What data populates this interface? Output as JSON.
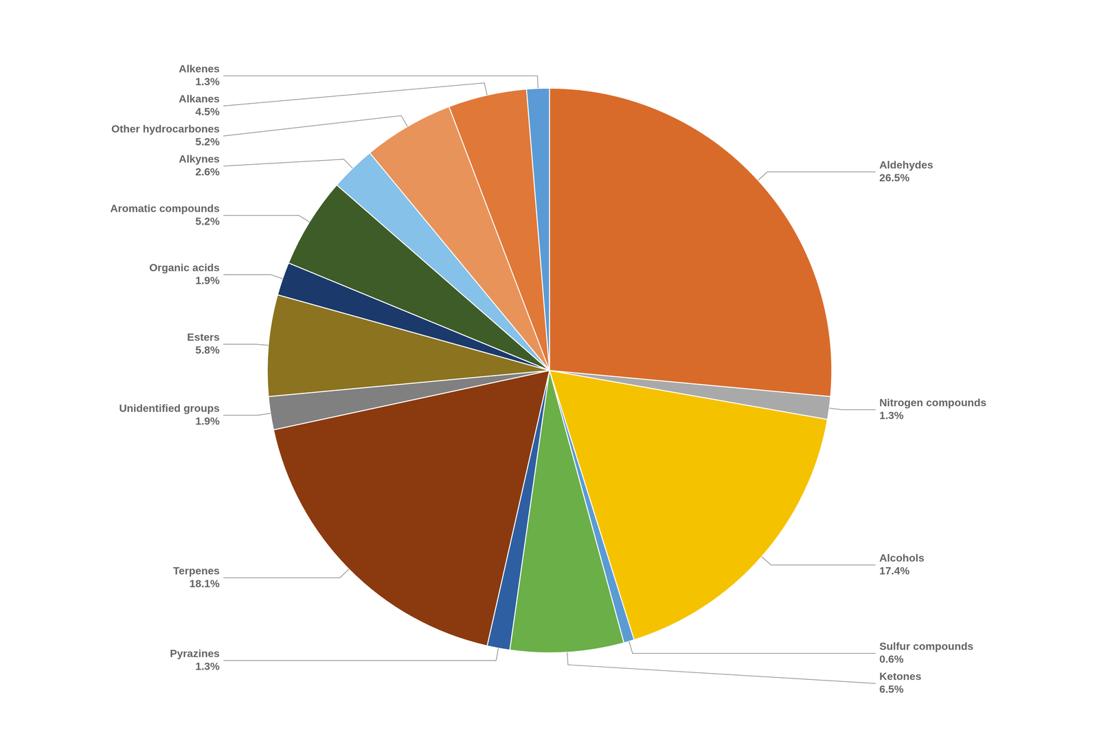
{
  "chart_data": {
    "type": "pie",
    "categories": [
      "Aldehydes",
      "Nitrogen compounds",
      "Alcohols",
      "Sulfur compounds",
      "Ketones",
      "Pyrazines",
      "Terpenes",
      "Unidentified groups",
      "Esters",
      "Organic acids",
      "Aromatic compounds",
      "Alkynes",
      "Other hydrocarbones",
      "Alkanes",
      "Alkenes"
    ],
    "values": [
      26.5,
      1.3,
      17.4,
      0.6,
      6.5,
      1.3,
      18.1,
      1.9,
      5.8,
      1.9,
      5.2,
      2.6,
      5.2,
      4.5,
      1.3
    ],
    "value_labels": [
      "26.5%",
      "1.3%",
      "17.4%",
      "0.6%",
      "6.5%",
      "1.3%",
      "18.1%",
      "1.9%",
      "5.8%",
      "1.9%",
      "5.2%",
      "2.6%",
      "5.2%",
      "4.5%",
      "1.3%"
    ],
    "colors": [
      "#D96B2A",
      "#A9A9A9",
      "#F5C200",
      "#5B9BD5",
      "#6AAF47",
      "#2E5FA3",
      "#8B3A0F",
      "#808080",
      "#8B7320",
      "#1B3A6B",
      "#3E5C28",
      "#85C1E9",
      "#E8935A",
      "#E07838",
      "#5B9BD5"
    ],
    "data_labels": true
  }
}
